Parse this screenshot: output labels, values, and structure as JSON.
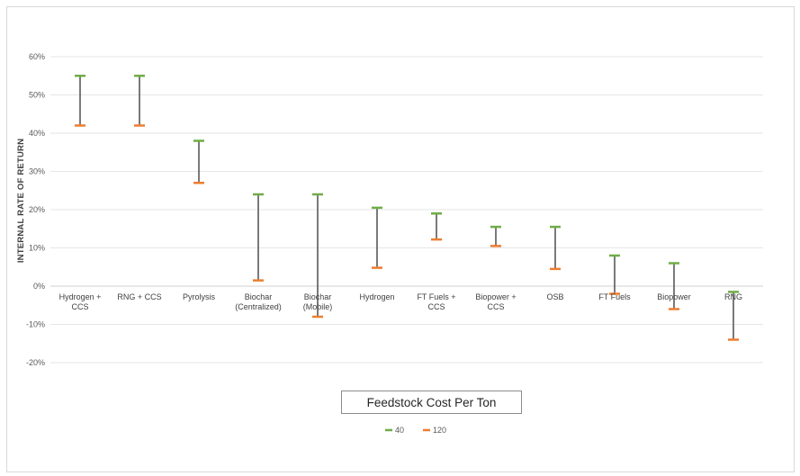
{
  "chart_data": {
    "type": "range",
    "ylabel": "INTERNAL RATE OF RETURN",
    "xlabel": "Feedstock Cost Per Ton",
    "ylim": [
      -0.2,
      0.6
    ],
    "yticks": [
      -0.2,
      -0.1,
      0,
      0.1,
      0.2,
      0.3,
      0.4,
      0.5,
      0.6
    ],
    "ytick_labels": [
      "-20%",
      "-10%",
      "0%",
      "10%",
      "20%",
      "30%",
      "40%",
      "50%",
      "60%"
    ],
    "grid": true,
    "legend_position": "bottom",
    "categories": [
      [
        "Hydrogen +",
        "CCS"
      ],
      [
        "RNG + CCS"
      ],
      [
        "Pyrolysis"
      ],
      [
        "Biochar",
        "(Centralized)"
      ],
      [
        "Biochar",
        "(Mobile)"
      ],
      [
        "Hydrogen"
      ],
      [
        "FT Fuels +",
        "CCS"
      ],
      [
        "Biopower +",
        "CCS"
      ],
      [
        "OSB"
      ],
      [
        "FT Fuels"
      ],
      [
        "Biopower"
      ],
      [
        "RNG"
      ]
    ],
    "series": [
      {
        "name": "40",
        "color": "#70ad47",
        "values": [
          0.55,
          0.55,
          0.38,
          0.24,
          0.24,
          0.205,
          0.19,
          0.155,
          0.155,
          0.08,
          0.06,
          -0.015
        ]
      },
      {
        "name": "120",
        "color": "#ed7d31",
        "values": [
          0.42,
          0.42,
          0.27,
          0.015,
          -0.08,
          0.048,
          0.122,
          0.105,
          0.045,
          -0.02,
          -0.06,
          -0.14
        ]
      }
    ],
    "connector_color": "#595959"
  }
}
